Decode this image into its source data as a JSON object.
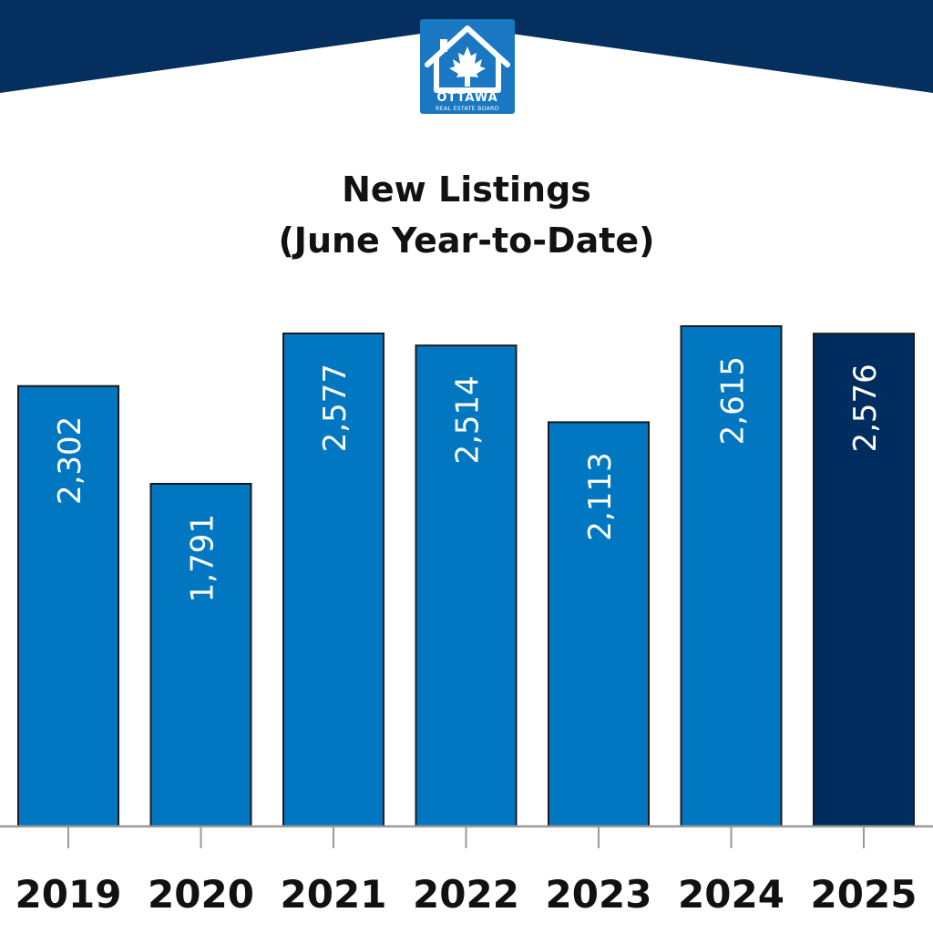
{
  "logo": {
    "name": "OTTAWA",
    "subtitle": "REAL ESTATE BOARD"
  },
  "colors": {
    "banner": "#042f5e",
    "logo_bg": "#1a78c2",
    "bar": "#0277c1",
    "bar_highlight": "#002d5f",
    "bar_border": "#1a1a1a",
    "axis": "#9a9a9a",
    "label_text": "#ffffff",
    "tick_text": "#111111"
  },
  "chart_data": {
    "type": "bar",
    "title": "New Listings",
    "subtitle": "(June Year-to-Date)",
    "categories": [
      "2019",
      "2020",
      "2021",
      "2022",
      "2023",
      "2024",
      "2025"
    ],
    "values": [
      2302,
      1791,
      2577,
      2514,
      2113,
      2615,
      2576
    ],
    "value_labels": [
      "2,302",
      "1,791",
      "2,577",
      "2,514",
      "2,113",
      "2,615",
      "2,576"
    ],
    "highlight_category": "2025",
    "xlabel": "",
    "ylabel": "",
    "ylim": [
      0,
      2615
    ],
    "grid": false,
    "legend": "none",
    "data_label_orientation": "vertical"
  }
}
